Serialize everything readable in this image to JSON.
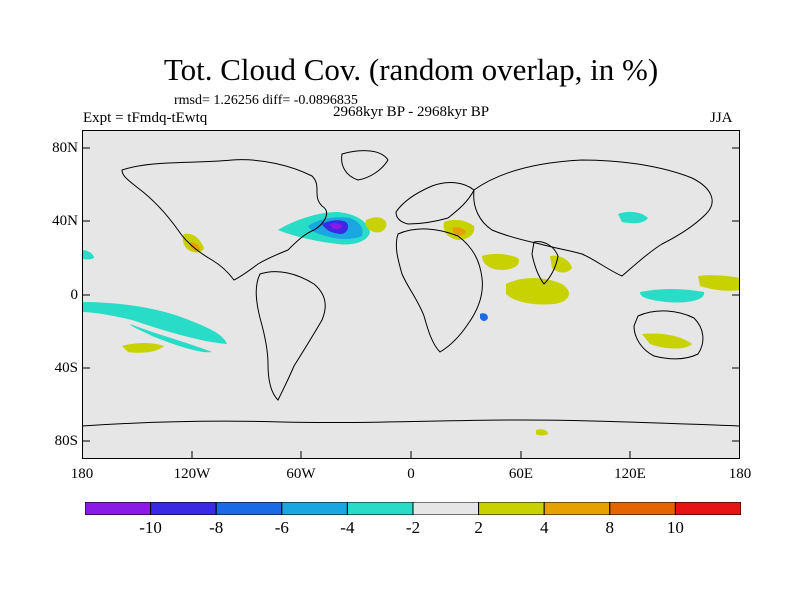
{
  "header": {
    "title": "Tot. Cloud Cov. (random overlap, in %)",
    "stats": "rmsd= 1.26256 diff= -0.0896835",
    "period": "2968kyr BP - 2968kyr BP",
    "experiment": "Expt = tFmdq-tEwtq",
    "season": "JJA"
  },
  "map": {
    "projection": "cylindrical equidistant",
    "background_color": "#e6e6e6",
    "coastline_color": "#000000",
    "y_tick_labels": [
      "80N",
      "40N",
      "0",
      "40S",
      "80S"
    ],
    "x_tick_labels": [
      "180",
      "120W",
      "60W",
      "0",
      "60E",
      "120E",
      "180"
    ]
  },
  "colorbar": {
    "colors": [
      "#8a1ae6",
      "#3a2ae6",
      "#1a6ae6",
      "#1aa6e0",
      "#28dcc8",
      "#e6e6e6",
      "#c8d200",
      "#e6a000",
      "#e66400",
      "#e61414"
    ],
    "labels": [
      "-10",
      "-8",
      "-6",
      "-4",
      "-2",
      "2",
      "4",
      "8",
      "10"
    ]
  },
  "legend_levels": [
    -10,
    -8,
    -6,
    -4,
    -2,
    2,
    4,
    8,
    10
  ]
}
